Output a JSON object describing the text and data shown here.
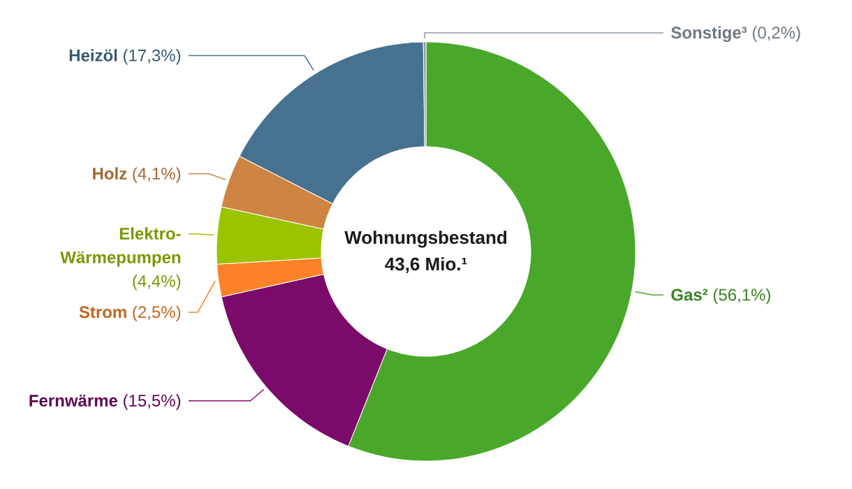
{
  "chart_data": {
    "type": "donut",
    "title": "Wohnungsbestand",
    "subtitle": "43,6 Mio.¹",
    "categories": [
      "Gas²",
      "Fernwärme",
      "Strom",
      "Elektro-Wärmepumpen",
      "Holz",
      "Heizöl",
      "Sonstige³"
    ],
    "values": [
      56.1,
      15.5,
      2.5,
      4.4,
      4.1,
      17.3,
      0.2
    ],
    "colors": [
      "#49a82a",
      "#7b0b6a",
      "#fd8126",
      "#9bc400",
      "#ce8541",
      "#47728f",
      "#8f9aa4"
    ],
    "value_labels": [
      "(56,1%)",
      "(15,5%)",
      "(2,5%)",
      "(4,4%)",
      "(4,1%)",
      "(17,3%)",
      "(0,2%)"
    ]
  }
}
